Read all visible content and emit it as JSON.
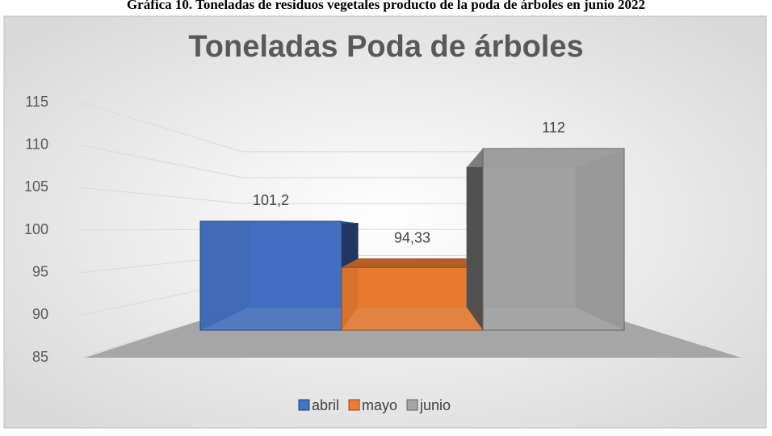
{
  "caption": "Gráfica 10. Toneladas de residuos vegetales producto de la poda de árboles en junio 2022",
  "chart_data": {
    "type": "bar3d",
    "title": "Toneladas Poda de árboles",
    "categories": [
      "abril",
      "mayo",
      "junio"
    ],
    "series": [
      {
        "name": "abril",
        "color": "#4472c4"
      },
      {
        "name": "mayo",
        "color": "#ed7d31"
      },
      {
        "name": "junio",
        "color": "#a5a5a5"
      }
    ],
    "values": [
      101.2,
      94.33,
      112
    ],
    "value_labels": [
      "101,2",
      "94,33",
      "112"
    ],
    "ylim": [
      85,
      115
    ],
    "yticks": [
      85,
      90,
      95,
      100,
      105,
      110,
      115
    ],
    "grid": true,
    "legend": "bottom"
  }
}
